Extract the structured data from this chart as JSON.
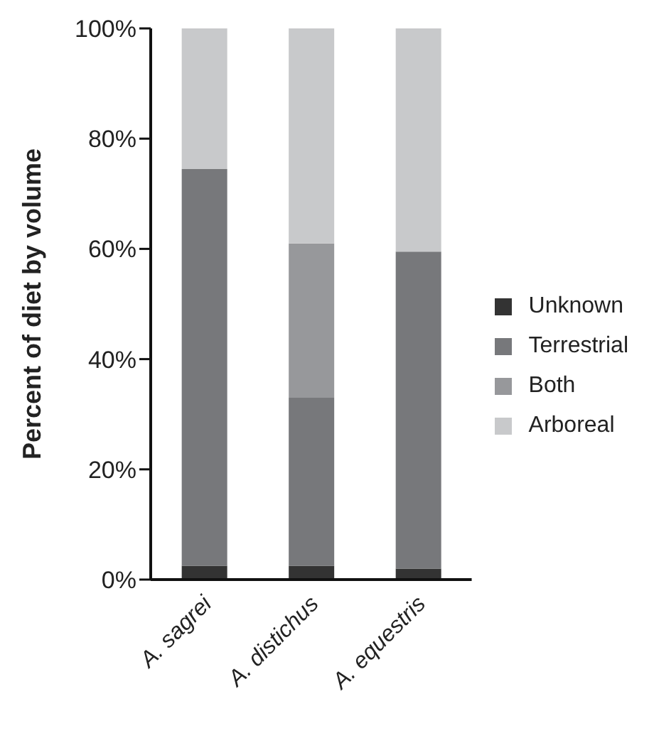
{
  "chart_data": {
    "type": "bar",
    "stacked": true,
    "ylabel": "Percent of diet by volume",
    "categories": [
      "A. sagrei",
      "A. distichus",
      "A. equestris"
    ],
    "series": [
      {
        "name": "Unknown",
        "color": "#333333",
        "values": [
          2.5,
          2.5,
          2
        ]
      },
      {
        "name": "Terrestrial",
        "color": "#77787b",
        "values": [
          72,
          30.5,
          57.5
        ]
      },
      {
        "name": "Both",
        "color": "#97989b",
        "values": [
          0,
          28,
          0
        ]
      },
      {
        "name": "Arboreal",
        "color": "#c8c9cb",
        "values": [
          25.5,
          39,
          40.5
        ]
      }
    ],
    "ylim": [
      0,
      100
    ],
    "yticks": [
      {
        "value": 0,
        "label": "0%"
      },
      {
        "value": 20,
        "label": "20%"
      },
      {
        "value": 40,
        "label": "40%"
      },
      {
        "value": 60,
        "label": "60%"
      },
      {
        "value": 80,
        "label": "80%"
      },
      {
        "value": 100,
        "label": "100%"
      }
    ],
    "grid": false,
    "legend": "right"
  }
}
